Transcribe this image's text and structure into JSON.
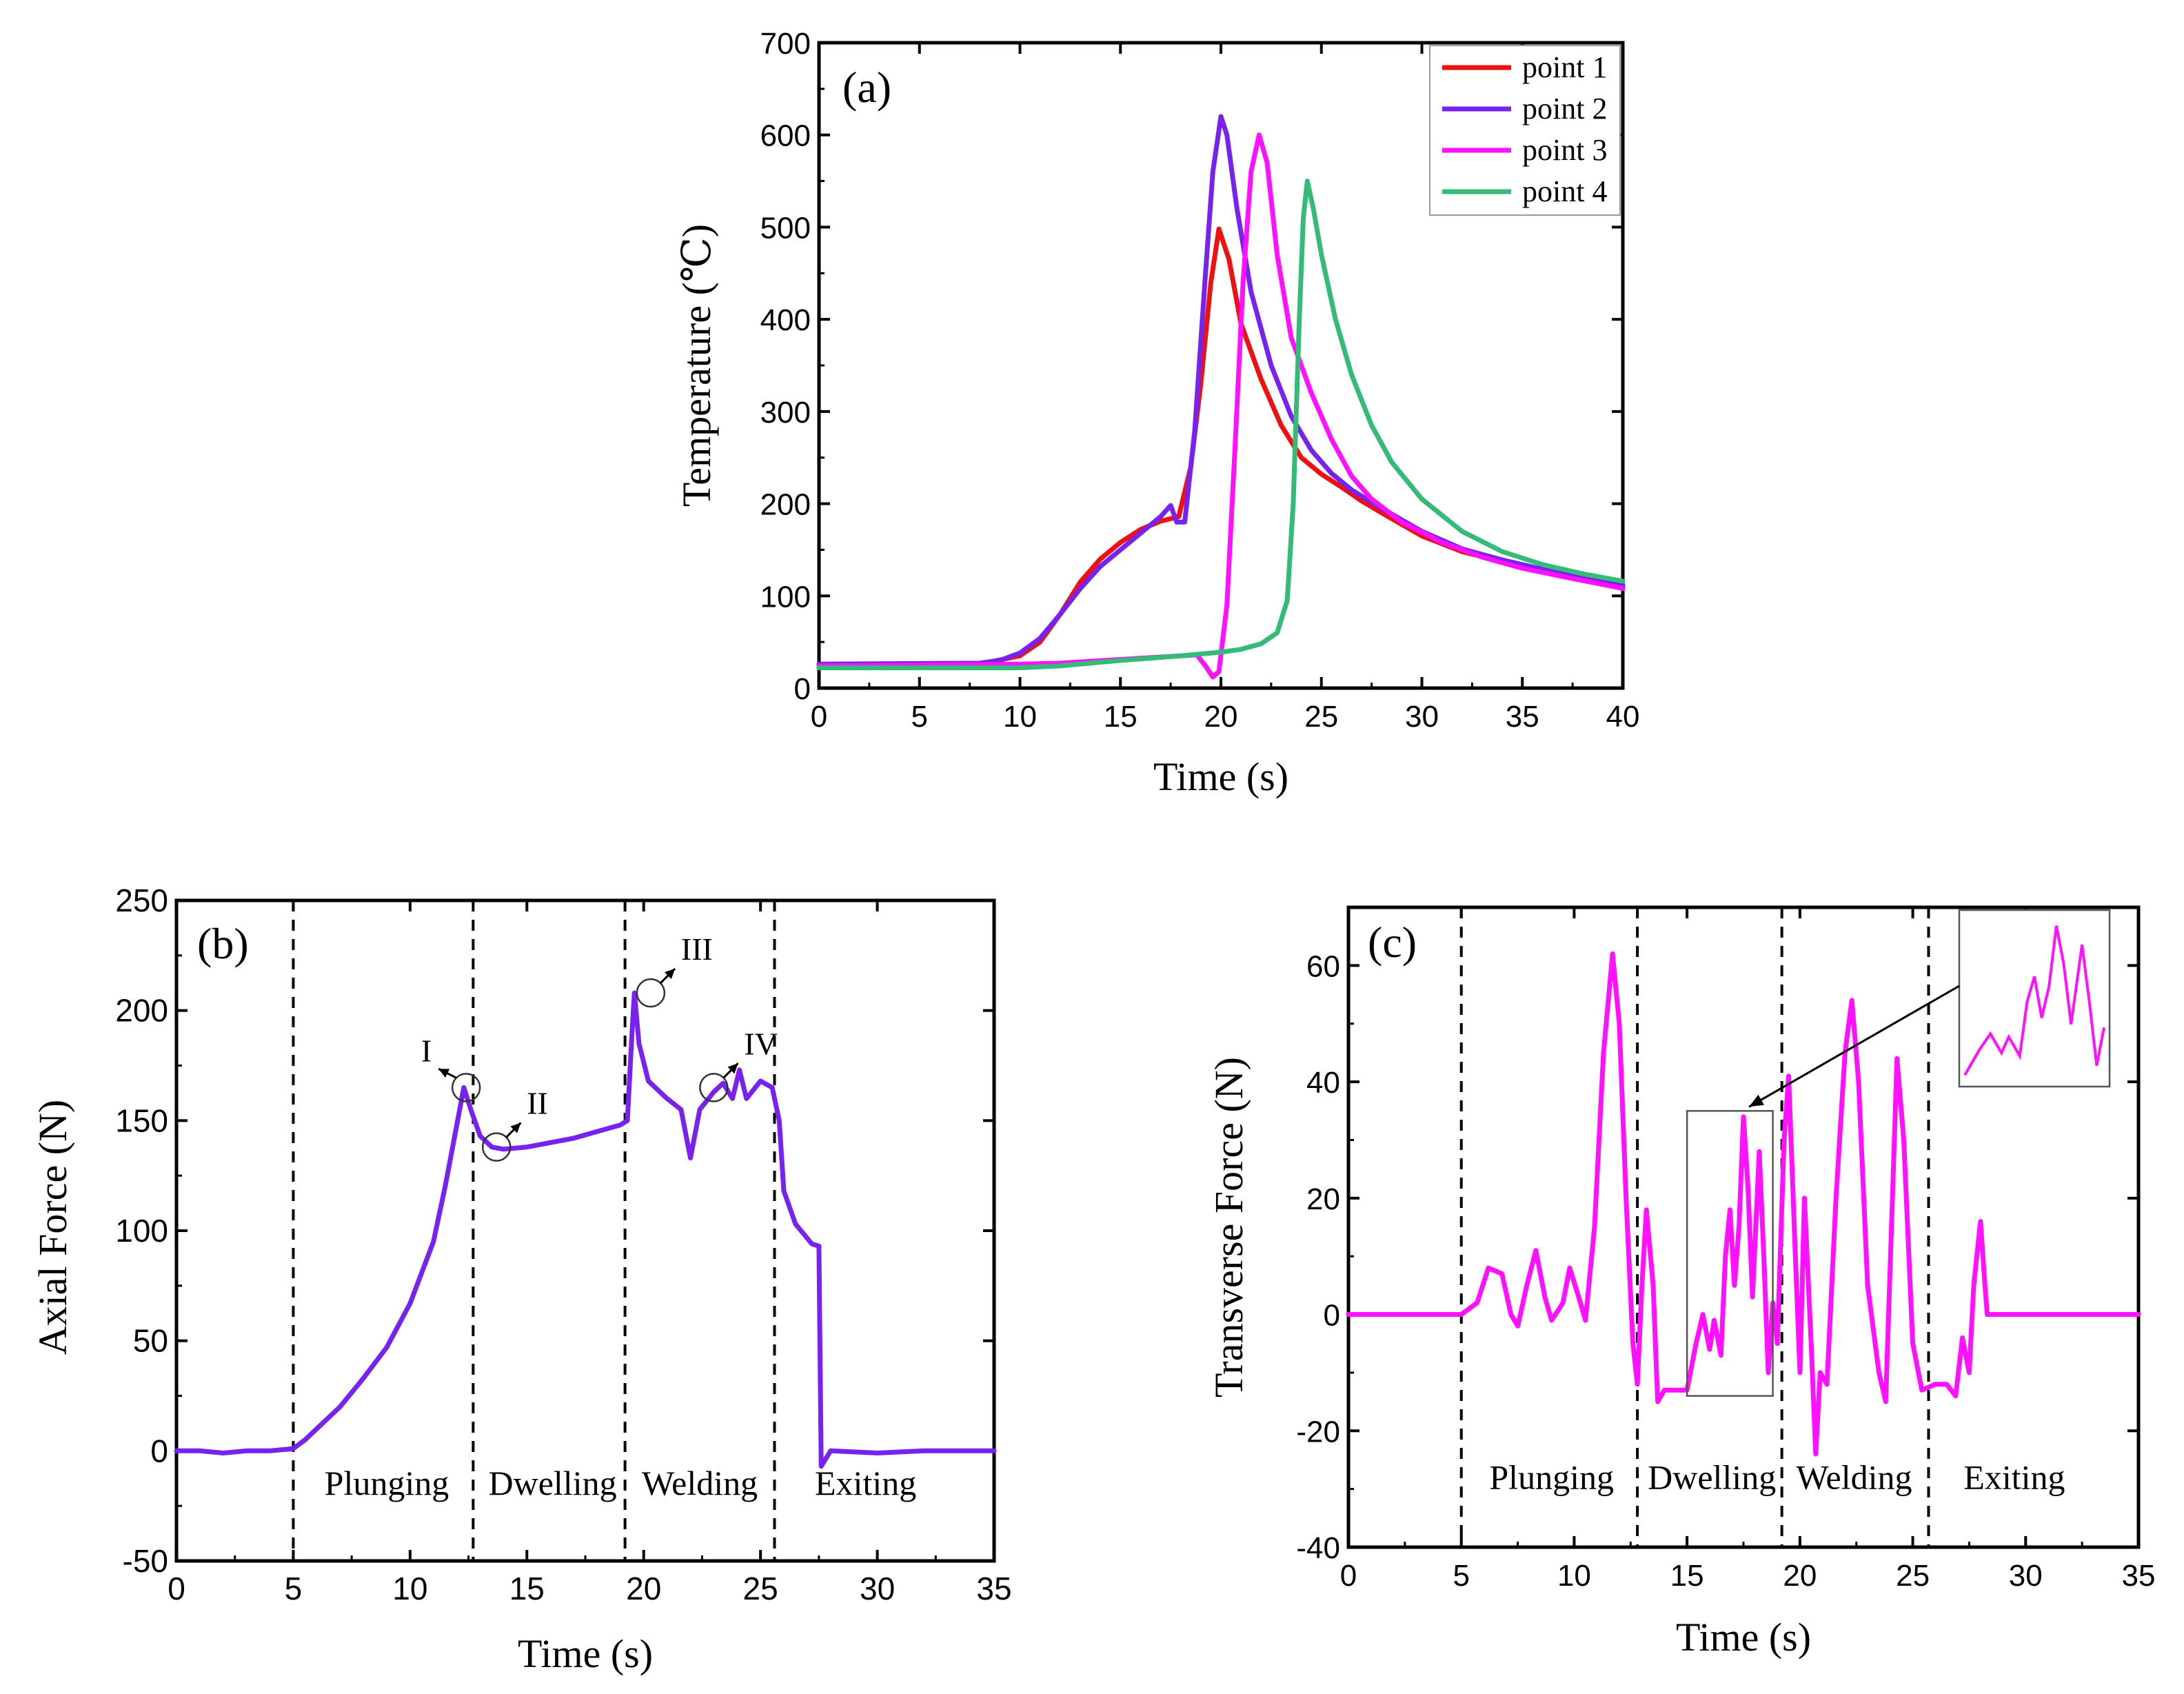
{
  "chart_data": [
    {
      "type": "line",
      "panel_label": "(a)",
      "xlabel": "Time (s)",
      "ylabel": "Temperature (℃)",
      "xlim": [
        0,
        40
      ],
      "ylim": [
        0,
        700
      ],
      "xticks": [
        "0",
        "5",
        "10",
        "15",
        "20",
        "25",
        "30",
        "35",
        "40"
      ],
      "yticks": [
        "0",
        "100",
        "200",
        "300",
        "400",
        "500",
        "600",
        "700"
      ],
      "legend": "top-right",
      "colors": {
        "axis": "#000000"
      },
      "series": [
        {
          "name": "point 1",
          "color": "#ee1111",
          "points": [
            [
              0,
              25
            ],
            [
              8,
              26
            ],
            [
              10,
              35
            ],
            [
              11,
              50
            ],
            [
              12,
              80
            ],
            [
              13,
              115
            ],
            [
              14,
              140
            ],
            [
              15,
              158
            ],
            [
              16,
              172
            ],
            [
              17,
              181
            ],
            [
              17.9,
              186
            ],
            [
              18.5,
              240
            ],
            [
              19,
              330
            ],
            [
              19.5,
              440
            ],
            [
              19.9,
              498
            ],
            [
              20.4,
              465
            ],
            [
              21,
              395
            ],
            [
              22,
              335
            ],
            [
              23,
              285
            ],
            [
              24,
              250
            ],
            [
              25,
              232
            ],
            [
              26,
              218
            ],
            [
              27,
              203
            ],
            [
              28,
              190
            ],
            [
              30,
              165
            ],
            [
              32,
              148
            ],
            [
              34,
              137
            ],
            [
              36,
              127
            ],
            [
              38,
              118
            ],
            [
              40,
              110
            ]
          ]
        },
        {
          "name": "point 2",
          "color": "#7722ee",
          "points": [
            [
              0,
              26
            ],
            [
              8,
              27
            ],
            [
              9,
              30
            ],
            [
              10,
              38
            ],
            [
              11,
              54
            ],
            [
              12,
              80
            ],
            [
              13,
              108
            ],
            [
              14,
              132
            ],
            [
              15,
              150
            ],
            [
              16,
              168
            ],
            [
              17,
              186
            ],
            [
              17.5,
              198
            ],
            [
              17.8,
              180
            ],
            [
              18.2,
              180
            ],
            [
              18.7,
              280
            ],
            [
              19.2,
              440
            ],
            [
              19.6,
              560
            ],
            [
              20,
              620
            ],
            [
              20.3,
              600
            ],
            [
              20.8,
              520
            ],
            [
              21.5,
              430
            ],
            [
              22.5,
              350
            ],
            [
              23.5,
              295
            ],
            [
              24.5,
              258
            ],
            [
              25.5,
              233
            ],
            [
              26.5,
              215
            ],
            [
              28,
              195
            ],
            [
              30,
              170
            ],
            [
              32,
              151
            ],
            [
              34,
              139
            ],
            [
              36,
              129
            ],
            [
              38,
              120
            ],
            [
              40,
              112
            ]
          ]
        },
        {
          "name": "point 3",
          "color": "#ff11ff",
          "points": [
            [
              0,
              24
            ],
            [
              10,
              26
            ],
            [
              12,
              27
            ],
            [
              15,
              31
            ],
            [
              18,
              35
            ],
            [
              18.8,
              36
            ],
            [
              19.2,
              25
            ],
            [
              19.6,
              12
            ],
            [
              19.9,
              18
            ],
            [
              20.3,
              90
            ],
            [
              20.7,
              260
            ],
            [
              21.1,
              440
            ],
            [
              21.5,
              560
            ],
            [
              21.9,
              600
            ],
            [
              22.3,
              570
            ],
            [
              22.8,
              470
            ],
            [
              23.5,
              380
            ],
            [
              24.5,
              320
            ],
            [
              25.5,
              270
            ],
            [
              26.5,
              230
            ],
            [
              27.5,
              205
            ],
            [
              29,
              180
            ],
            [
              31,
              158
            ],
            [
              33,
              142
            ],
            [
              35,
              130
            ],
            [
              37,
              121
            ],
            [
              40,
              108
            ]
          ]
        },
        {
          "name": "point 4",
          "color": "#33bb77",
          "points": [
            [
              0,
              22
            ],
            [
              10,
              22
            ],
            [
              12,
              24
            ],
            [
              15,
              30
            ],
            [
              18,
              35
            ],
            [
              20,
              39
            ],
            [
              21,
              42
            ],
            [
              22,
              48
            ],
            [
              22.8,
              60
            ],
            [
              23.3,
              95
            ],
            [
              23.6,
              200
            ],
            [
              23.9,
              400
            ],
            [
              24.1,
              510
            ],
            [
              24.3,
              550
            ],
            [
              24.6,
              520
            ],
            [
              25,
              470
            ],
            [
              25.7,
              400
            ],
            [
              26.5,
              340
            ],
            [
              27.5,
              285
            ],
            [
              28.5,
              245
            ],
            [
              30,
              205
            ],
            [
              32,
              170
            ],
            [
              34,
              148
            ],
            [
              36,
              134
            ],
            [
              38,
              124
            ],
            [
              40,
              116
            ]
          ]
        }
      ]
    },
    {
      "type": "line",
      "panel_label": "(b)",
      "xlabel": "Time (s)",
      "ylabel": "Axial Force (N)",
      "xlim": [
        0,
        35
      ],
      "ylim": [
        -50,
        250
      ],
      "xticks": [
        "0",
        "5",
        "10",
        "15",
        "20",
        "25",
        "30",
        "35"
      ],
      "yticks": [
        "-50",
        "0",
        "50",
        "100",
        "150",
        "200",
        "250"
      ],
      "phase_boundaries": [
        5,
        12.7,
        19.2,
        25.6
      ],
      "phase_labels": [
        "Plunging",
        "Dwelling",
        "Welding",
        "Exiting"
      ],
      "phase_label_x": [
        9.0,
        16.1,
        22.4,
        29.5
      ],
      "phase_label_y": -20,
      "annotations": [
        {
          "text": "I",
          "x": 12.4,
          "y": 165
        },
        {
          "text": "II",
          "x": 13.7,
          "y": 138
        },
        {
          "text": "III",
          "x": 20.3,
          "y": 208
        },
        {
          "text": "IV",
          "x": 23.0,
          "y": 165
        }
      ],
      "series": [
        {
          "name": "Axial Force",
          "color": "#7722ee",
          "points": [
            [
              0,
              0
            ],
            [
              1,
              0
            ],
            [
              2,
              -1
            ],
            [
              3,
              0
            ],
            [
              4,
              0
            ],
            [
              5,
              1
            ],
            [
              5.5,
              5
            ],
            [
              6,
              10
            ],
            [
              7,
              20
            ],
            [
              8,
              33
            ],
            [
              9,
              47
            ],
            [
              10,
              67
            ],
            [
              11,
              95
            ],
            [
              11.5,
              120
            ],
            [
              12,
              148
            ],
            [
              12.3,
              165
            ],
            [
              12.6,
              155
            ],
            [
              13,
              143
            ],
            [
              13.5,
              138
            ],
            [
              14,
              137
            ],
            [
              15,
              138
            ],
            [
              16,
              140
            ],
            [
              17,
              142
            ],
            [
              18,
              145
            ],
            [
              19,
              148
            ],
            [
              19.3,
              150
            ],
            [
              19.5,
              190
            ],
            [
              19.6,
              208
            ],
            [
              19.8,
              185
            ],
            [
              20.2,
              168
            ],
            [
              21,
              160
            ],
            [
              21.6,
              155
            ],
            [
              22,
              133
            ],
            [
              22.4,
              155
            ],
            [
              23,
              163
            ],
            [
              23.4,
              167
            ],
            [
              23.8,
              160
            ],
            [
              24.1,
              173
            ],
            [
              24.4,
              160
            ],
            [
              25,
              168
            ],
            [
              25.5,
              165
            ],
            [
              25.8,
              150
            ],
            [
              26,
              118
            ],
            [
              26.5,
              103
            ],
            [
              27.2,
              94
            ],
            [
              27.5,
              93
            ],
            [
              27.6,
              -7
            ],
            [
              28,
              0
            ],
            [
              30,
              -1
            ],
            [
              32,
              0
            ],
            [
              35,
              0
            ]
          ]
        }
      ]
    },
    {
      "type": "line",
      "panel_label": "(c)",
      "xlabel": "Time (s)",
      "ylabel": "Transverse Force (N)",
      "xlim": [
        0,
        35
      ],
      "ylim": [
        -40,
        70
      ],
      "xticks": [
        "0",
        "5",
        "10",
        "15",
        "20",
        "25",
        "30",
        "35"
      ],
      "yticks": [
        "-40",
        "-20",
        "0",
        "20",
        "40",
        "60"
      ],
      "phase_boundaries": [
        5,
        12.8,
        19.2,
        25.7
      ],
      "phase_labels": [
        "Plunging",
        "Dwelling",
        "Welding",
        "Exiting"
      ],
      "phase_label_x": [
        9.0,
        16.1,
        22.4,
        29.5
      ],
      "phase_label_y": -30,
      "inset_box": {
        "x": [
          15.0,
          18.8
        ],
        "y": [
          -14,
          35
        ]
      },
      "series": [
        {
          "name": "Transverse Force",
          "color": "#ff11ff",
          "points": [
            [
              0,
              0
            ],
            [
              2,
              0
            ],
            [
              4,
              0
            ],
            [
              5,
              0
            ],
            [
              5.7,
              2
            ],
            [
              6.2,
              8
            ],
            [
              6.8,
              7
            ],
            [
              7.2,
              0
            ],
            [
              7.5,
              -2
            ],
            [
              7.9,
              5
            ],
            [
              8.3,
              11
            ],
            [
              8.7,
              3
            ],
            [
              9,
              -1
            ],
            [
              9.5,
              2
            ],
            [
              9.8,
              8
            ],
            [
              10.2,
              3
            ],
            [
              10.5,
              -1
            ],
            [
              10.9,
              15
            ],
            [
              11.3,
              45
            ],
            [
              11.7,
              62
            ],
            [
              12,
              50
            ],
            [
              12.3,
              20
            ],
            [
              12.6,
              -5
            ],
            [
              12.8,
              -12
            ],
            [
              13,
              5
            ],
            [
              13.2,
              18
            ],
            [
              13.5,
              5
            ],
            [
              13.7,
              -15
            ],
            [
              14,
              -13
            ],
            [
              15,
              -13
            ],
            [
              15.4,
              -5
            ],
            [
              15.7,
              0
            ],
            [
              16,
              -6
            ],
            [
              16.2,
              -1
            ],
            [
              16.5,
              -7
            ],
            [
              16.7,
              10
            ],
            [
              16.9,
              18
            ],
            [
              17.1,
              5
            ],
            [
              17.3,
              15
            ],
            [
              17.5,
              34
            ],
            [
              17.7,
              22
            ],
            [
              17.9,
              3
            ],
            [
              18.2,
              28
            ],
            [
              18.4,
              10
            ],
            [
              18.6,
              -10
            ],
            [
              18.8,
              2
            ],
            [
              19,
              -5
            ],
            [
              19.3,
              30
            ],
            [
              19.5,
              41
            ],
            [
              19.8,
              10
            ],
            [
              20,
              -10
            ],
            [
              20.2,
              20
            ],
            [
              20.5,
              -5
            ],
            [
              20.7,
              -24
            ],
            [
              20.9,
              -10
            ],
            [
              21.2,
              -12
            ],
            [
              21.6,
              20
            ],
            [
              22,
              45
            ],
            [
              22.3,
              54
            ],
            [
              22.6,
              40
            ],
            [
              23,
              5
            ],
            [
              23.5,
              -10
            ],
            [
              23.8,
              -15
            ],
            [
              24.1,
              20
            ],
            [
              24.3,
              44
            ],
            [
              24.6,
              30
            ],
            [
              25,
              -5
            ],
            [
              25.4,
              -13
            ],
            [
              26,
              -12
            ],
            [
              26.5,
              -12
            ],
            [
              26.9,
              -14
            ],
            [
              27.2,
              -4
            ],
            [
              27.5,
              -10
            ],
            [
              27.7,
              5
            ],
            [
              28,
              16
            ],
            [
              28.2,
              5
            ],
            [
              28.3,
              0
            ],
            [
              30,
              0
            ],
            [
              32,
              0
            ],
            [
              35,
              0
            ]
          ]
        }
      ]
    }
  ]
}
